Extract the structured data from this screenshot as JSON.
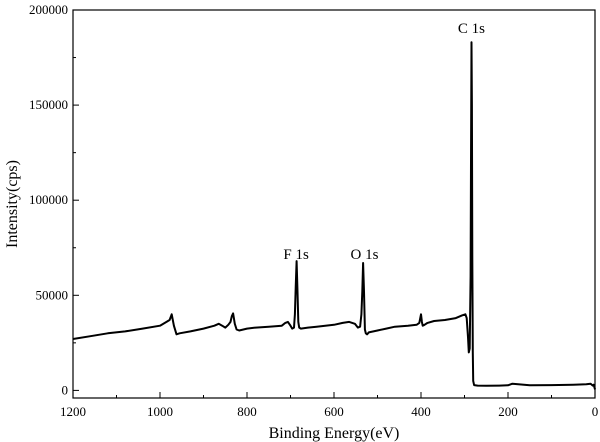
{
  "chart_data": {
    "type": "line",
    "title": "",
    "xlabel": "Binding Energy(eV)",
    "ylabel": "Intensity(cps)",
    "xlim": [
      1200,
      0
    ],
    "ylim": [
      -4000,
      200000
    ],
    "x_reversed": true,
    "grid": false,
    "legend": "none",
    "line_color": "#000000",
    "x_ticks": [
      1200,
      1000,
      800,
      600,
      400,
      200,
      0
    ],
    "y_ticks": [
      0,
      50000,
      100000,
      150000,
      200000
    ],
    "x_tick_labels": [
      "1200",
      "1000",
      "800",
      "600",
      "400",
      "200",
      "0"
    ],
    "y_tick_labels": [
      "0",
      "50000",
      "100000",
      "150000",
      "200000"
    ],
    "annotations": [
      {
        "text": "C 1s",
        "x": 284,
        "y": 188000
      },
      {
        "text": "F 1s",
        "x": 687,
        "y": 69000
      },
      {
        "text": "O 1s",
        "x": 530,
        "y": 69000
      }
    ],
    "series": [
      {
        "x": [
          1200,
          1160,
          1120,
          1080,
          1040,
          1000,
          985,
          978,
          973,
          968,
          962,
          955,
          930,
          900,
          875,
          865,
          857,
          850,
          843,
          838,
          835,
          832,
          828,
          824,
          818,
          800,
          780,
          750,
          720,
          712,
          706,
          700,
          696,
          692,
          690,
          688,
          686,
          684,
          682,
          680,
          676,
          660,
          640,
          620,
          600,
          580,
          565,
          552,
          545,
          540,
          537,
          535,
          533,
          531,
          529,
          527,
          524,
          520,
          500,
          480,
          460,
          430,
          410,
          404,
          400,
          398,
          396,
          392,
          385,
          370,
          345,
          320,
          305,
          298,
          295,
          292,
          290,
          288,
          286,
          285,
          284,
          283,
          282,
          281,
          280,
          278,
          270,
          250,
          220,
          200,
          190,
          150,
          100,
          50,
          20,
          10,
          5,
          3,
          0
        ],
        "y": [
          27000,
          28500,
          30000,
          31000,
          32500,
          34000,
          36000,
          37000,
          40000,
          34000,
          29500,
          30000,
          31000,
          32500,
          34000,
          35000,
          34000,
          33000,
          34500,
          36000,
          39000,
          40500,
          35000,
          32000,
          31500,
          32500,
          33000,
          33500,
          34000,
          35500,
          36000,
          34000,
          32500,
          33000,
          40000,
          54000,
          68000,
          52000,
          36000,
          33000,
          32500,
          33000,
          33500,
          34000,
          34500,
          35500,
          36000,
          35000,
          33000,
          33500,
          40000,
          52000,
          67000,
          52000,
          32000,
          30000,
          29500,
          30500,
          31500,
          32500,
          33500,
          34000,
          34500,
          35500,
          40000,
          36000,
          34000,
          34500,
          35500,
          36500,
          37000,
          38000,
          39500,
          40000,
          38000,
          28000,
          20000,
          22000,
          60000,
          120000,
          183000,
          150000,
          70000,
          20000,
          5000,
          2800,
          2500,
          2400,
          2500,
          2700,
          3500,
          2700,
          2800,
          3000,
          3200,
          3500,
          2500,
          3000,
          500
        ]
      }
    ]
  }
}
